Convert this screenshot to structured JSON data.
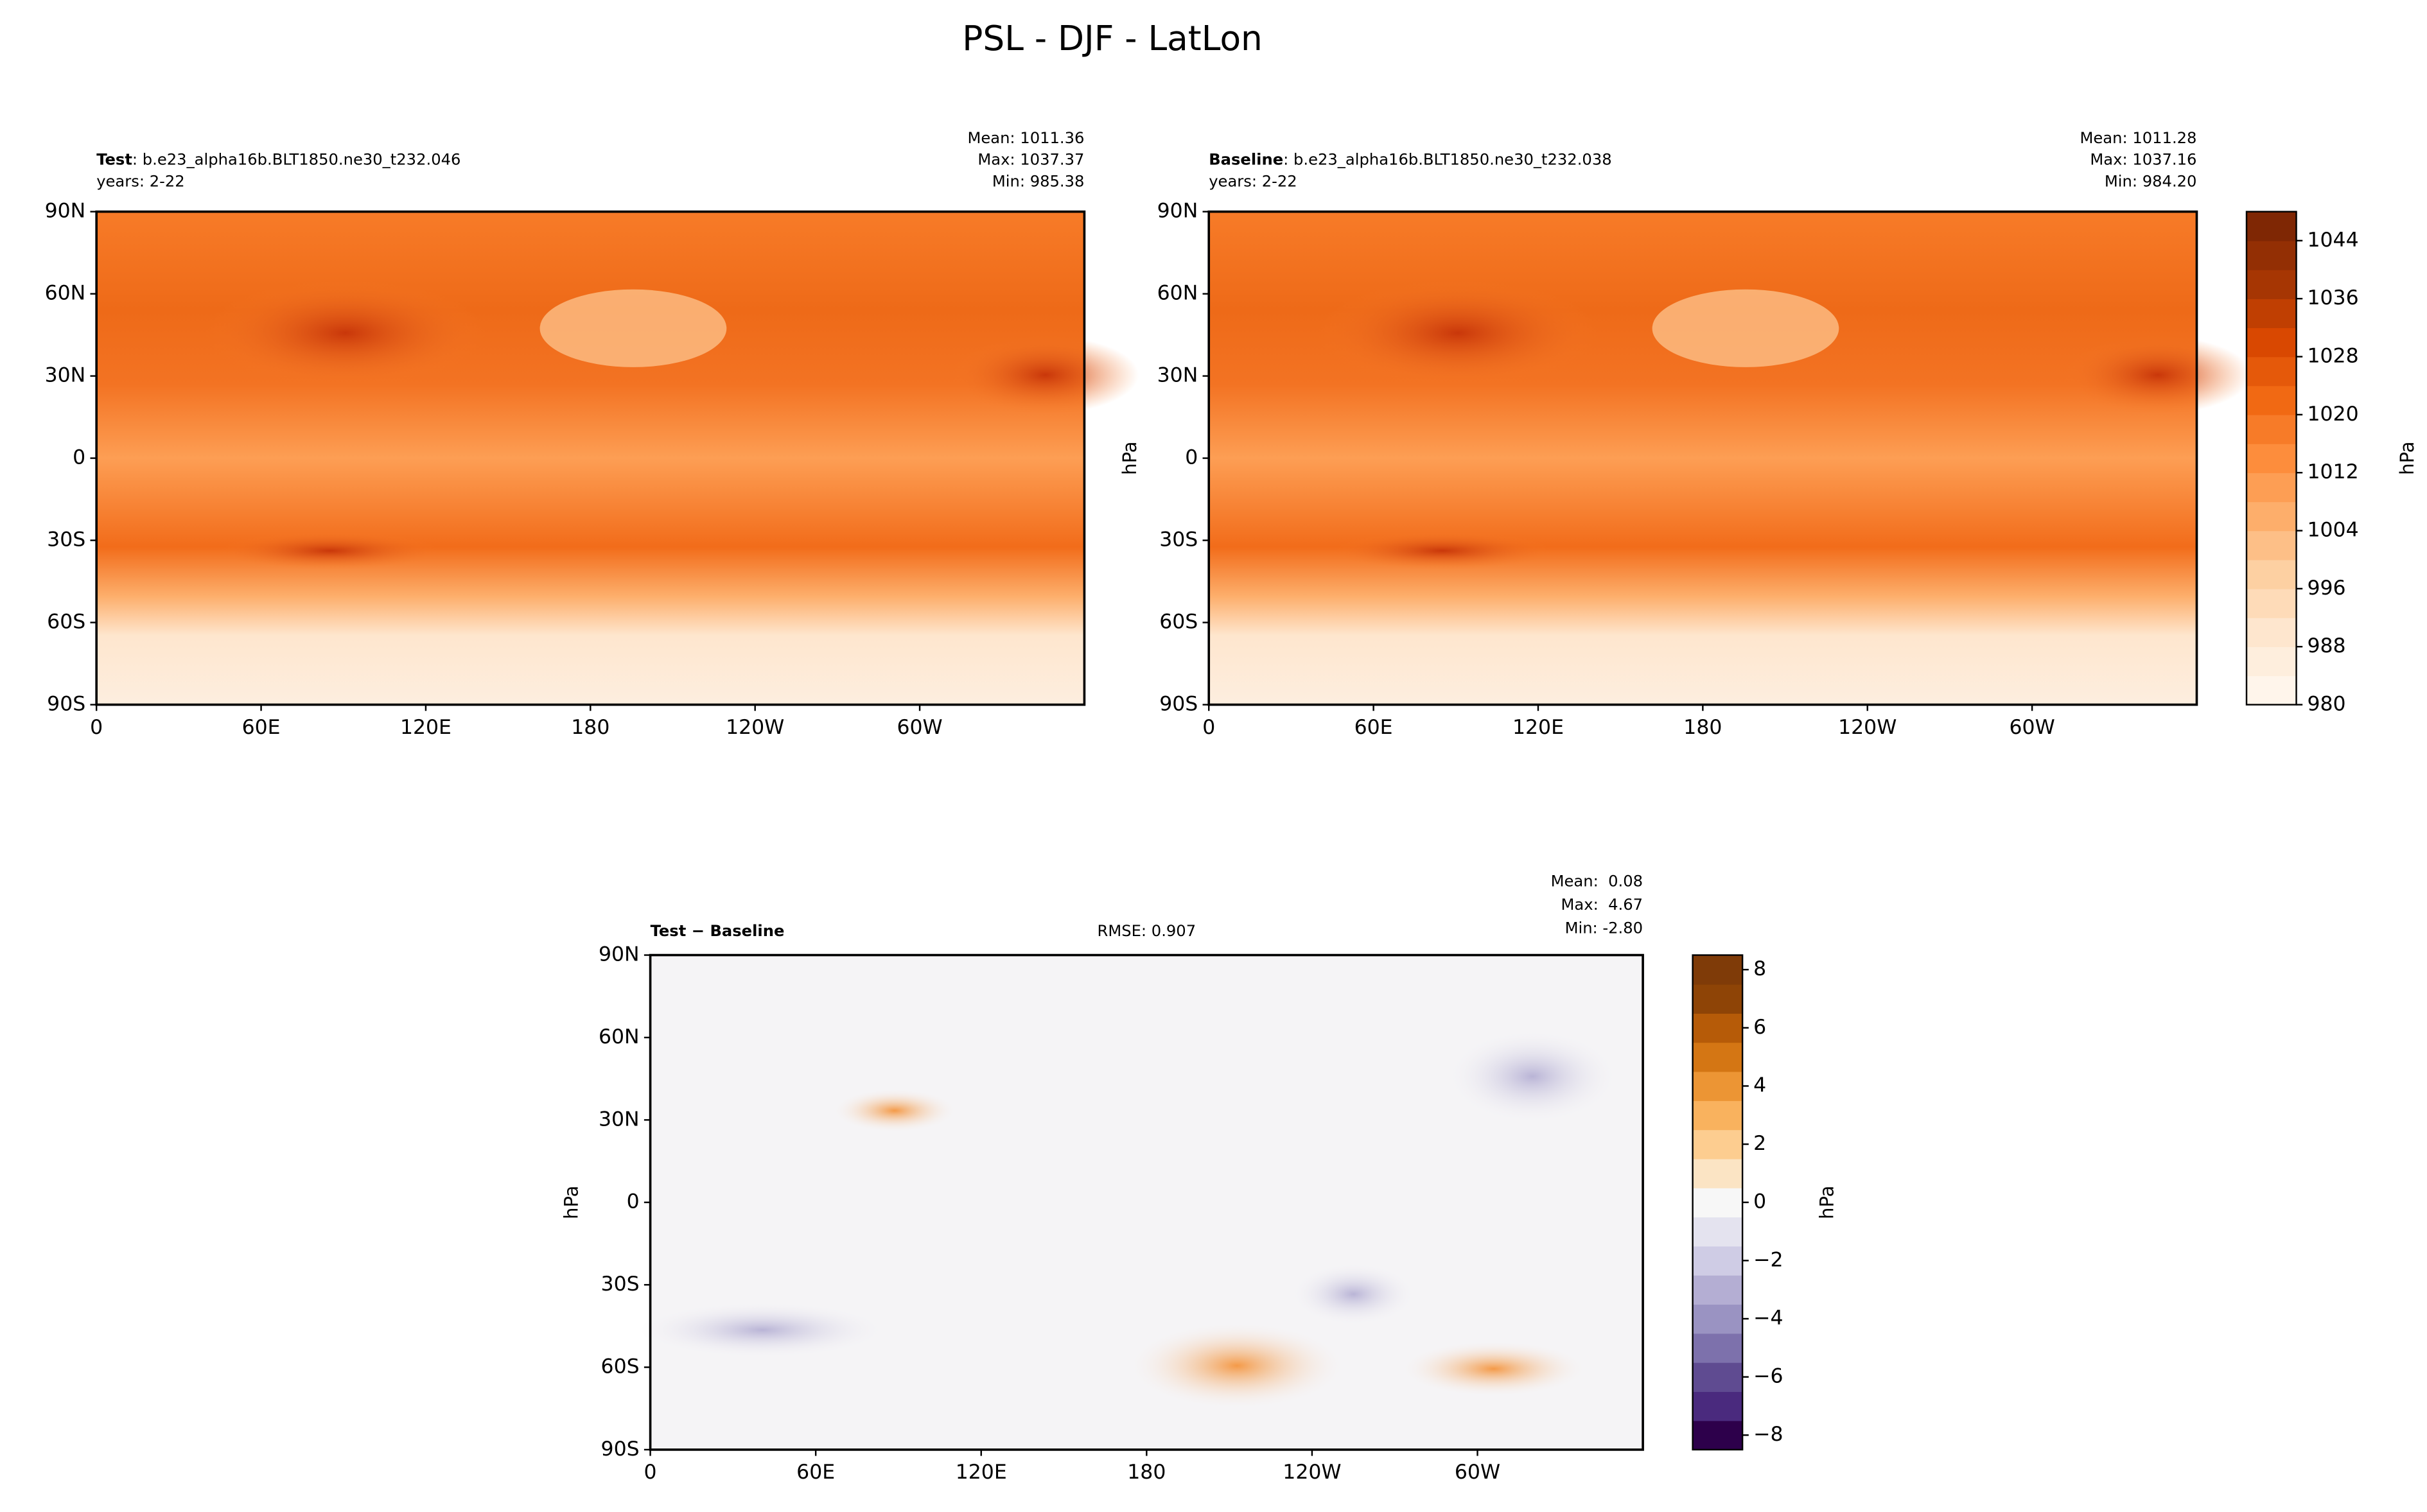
{
  "title": "PSL - DJF - LatLon",
  "chart_data": [
    {
      "type": "map",
      "label": "Test",
      "case": ": b.e23_alpha16b.BLT1850.ne30_t232.046",
      "years": "years: 2-22",
      "stats": [
        "Mean: 1011.36",
        "Max: 1037.37",
        "Min: 985.38"
      ],
      "xlim": [
        0,
        360
      ],
      "xticks": [
        0,
        {
          "value": 60,
          "label": "60E"
        },
        {
          "value": 120,
          "label": "120E"
        },
        180,
        {
          "value": 240,
          "label": "120W"
        },
        {
          "value": 300,
          "label": "60W"
        }
      ],
      "ylim": [
        -90,
        90
      ],
      "yticks": [
        {
          "value": 90,
          "label": "90N"
        },
        {
          "value": 60,
          "label": "60N"
        },
        {
          "value": 30,
          "label": "30N"
        },
        0,
        {
          "value": -30,
          "label": "30S"
        },
        {
          "value": -60,
          "label": "60S"
        },
        {
          "value": -90,
          "label": "90S"
        }
      ]
    },
    {
      "type": "map",
      "label": "Baseline",
      "case": ": b.e23_alpha16b.BLT1850.ne30_t232.038",
      "years": "years: 2-22",
      "stats": [
        "Mean: 1011.28",
        "Max: 1037.16",
        "Min: 984.20"
      ],
      "ylabel": "hPa",
      "xlim": [
        0,
        360
      ],
      "xticks": [
        0,
        {
          "value": 60,
          "label": "60E"
        },
        {
          "value": 120,
          "label": "120E"
        },
        180,
        {
          "value": 240,
          "label": "120W"
        },
        {
          "value": 300,
          "label": "60W"
        }
      ],
      "ylim": [
        -90,
        90
      ],
      "yticks": [
        {
          "value": 90,
          "label": "90N"
        },
        {
          "value": 60,
          "label": "60N"
        },
        {
          "value": 30,
          "label": "30N"
        },
        0,
        {
          "value": -30,
          "label": "30S"
        },
        {
          "value": -60,
          "label": "60S"
        },
        {
          "value": -90,
          "label": "90S"
        }
      ]
    },
    {
      "type": "colorbar",
      "label": "hPa",
      "levels": [
        980,
        984,
        988,
        992,
        996,
        1000,
        1004,
        1008,
        1012,
        1016,
        1020,
        1024,
        1028,
        1032,
        1036,
        1040,
        1044,
        1048
      ],
      "colors": [
        "#fff5eb",
        "#feeedd",
        "#fee6ce",
        "#fedbb8",
        "#fdd0a2",
        "#fdbf87",
        "#fdae6b",
        "#fd9e54",
        "#fd8d3c",
        "#f77b28",
        "#f16913",
        "#e5590a",
        "#d94801",
        "#c03f02",
        "#a63603",
        "#932f04",
        "#7f2704"
      ],
      "ylim": [
        980,
        1048
      ],
      "yticks": [
        980,
        988,
        996,
        1004,
        1012,
        1020,
        1028,
        1036,
        1044
      ]
    },
    {
      "type": "map",
      "label": "Test − Baseline",
      "rmse": "RMSE: 0.907",
      "stats": [
        "Mean:  0.08",
        "Max:  4.67",
        "Min: -2.80"
      ],
      "ylabel": "hPa",
      "xlim": [
        0,
        360
      ],
      "xticks": [
        0,
        {
          "value": 60,
          "label": "60E"
        },
        {
          "value": 120,
          "label": "120E"
        },
        180,
        {
          "value": 240,
          "label": "120W"
        },
        {
          "value": 300,
          "label": "60W"
        }
      ],
      "ylim": [
        -90,
        90
      ],
      "yticks": [
        {
          "value": 90,
          "label": "90N"
        },
        {
          "value": 60,
          "label": "60N"
        },
        {
          "value": 30,
          "label": "30N"
        },
        0,
        {
          "value": -30,
          "label": "30S"
        },
        {
          "value": -60,
          "label": "60S"
        },
        {
          "value": -90,
          "label": "90S"
        }
      ]
    },
    {
      "type": "colorbar",
      "label": "hPa",
      "levels": [
        -8.5,
        -7.5,
        -6.5,
        -5.5,
        -4.5,
        -3.5,
        -2.5,
        -1.5,
        -0.5,
        0.5,
        1.5,
        2.5,
        3.5,
        4.5,
        5.5,
        6.5,
        7.5,
        8.5
      ],
      "colors": [
        "#2d004b",
        "#4a2a7e",
        "#5f4b91",
        "#7d71ac",
        "#9a93c2",
        "#b4aed3",
        "#cfcce5",
        "#e4e3ef",
        "#f7f7f7",
        "#fbe4c4",
        "#fdcd90",
        "#f9b25e",
        "#ec9534",
        "#d47614",
        "#b65b08",
        "#8e4406",
        "#7f3b08"
      ],
      "ylim": [
        -8.5,
        8.5
      ],
      "yticks": [
        {
          "value": -8,
          "label": "−8"
        },
        {
          "value": -6,
          "label": "−6"
        },
        {
          "value": -4,
          "label": "−4"
        },
        {
          "value": -2,
          "label": "−2"
        },
        0,
        2,
        4,
        6,
        8
      ]
    }
  ]
}
